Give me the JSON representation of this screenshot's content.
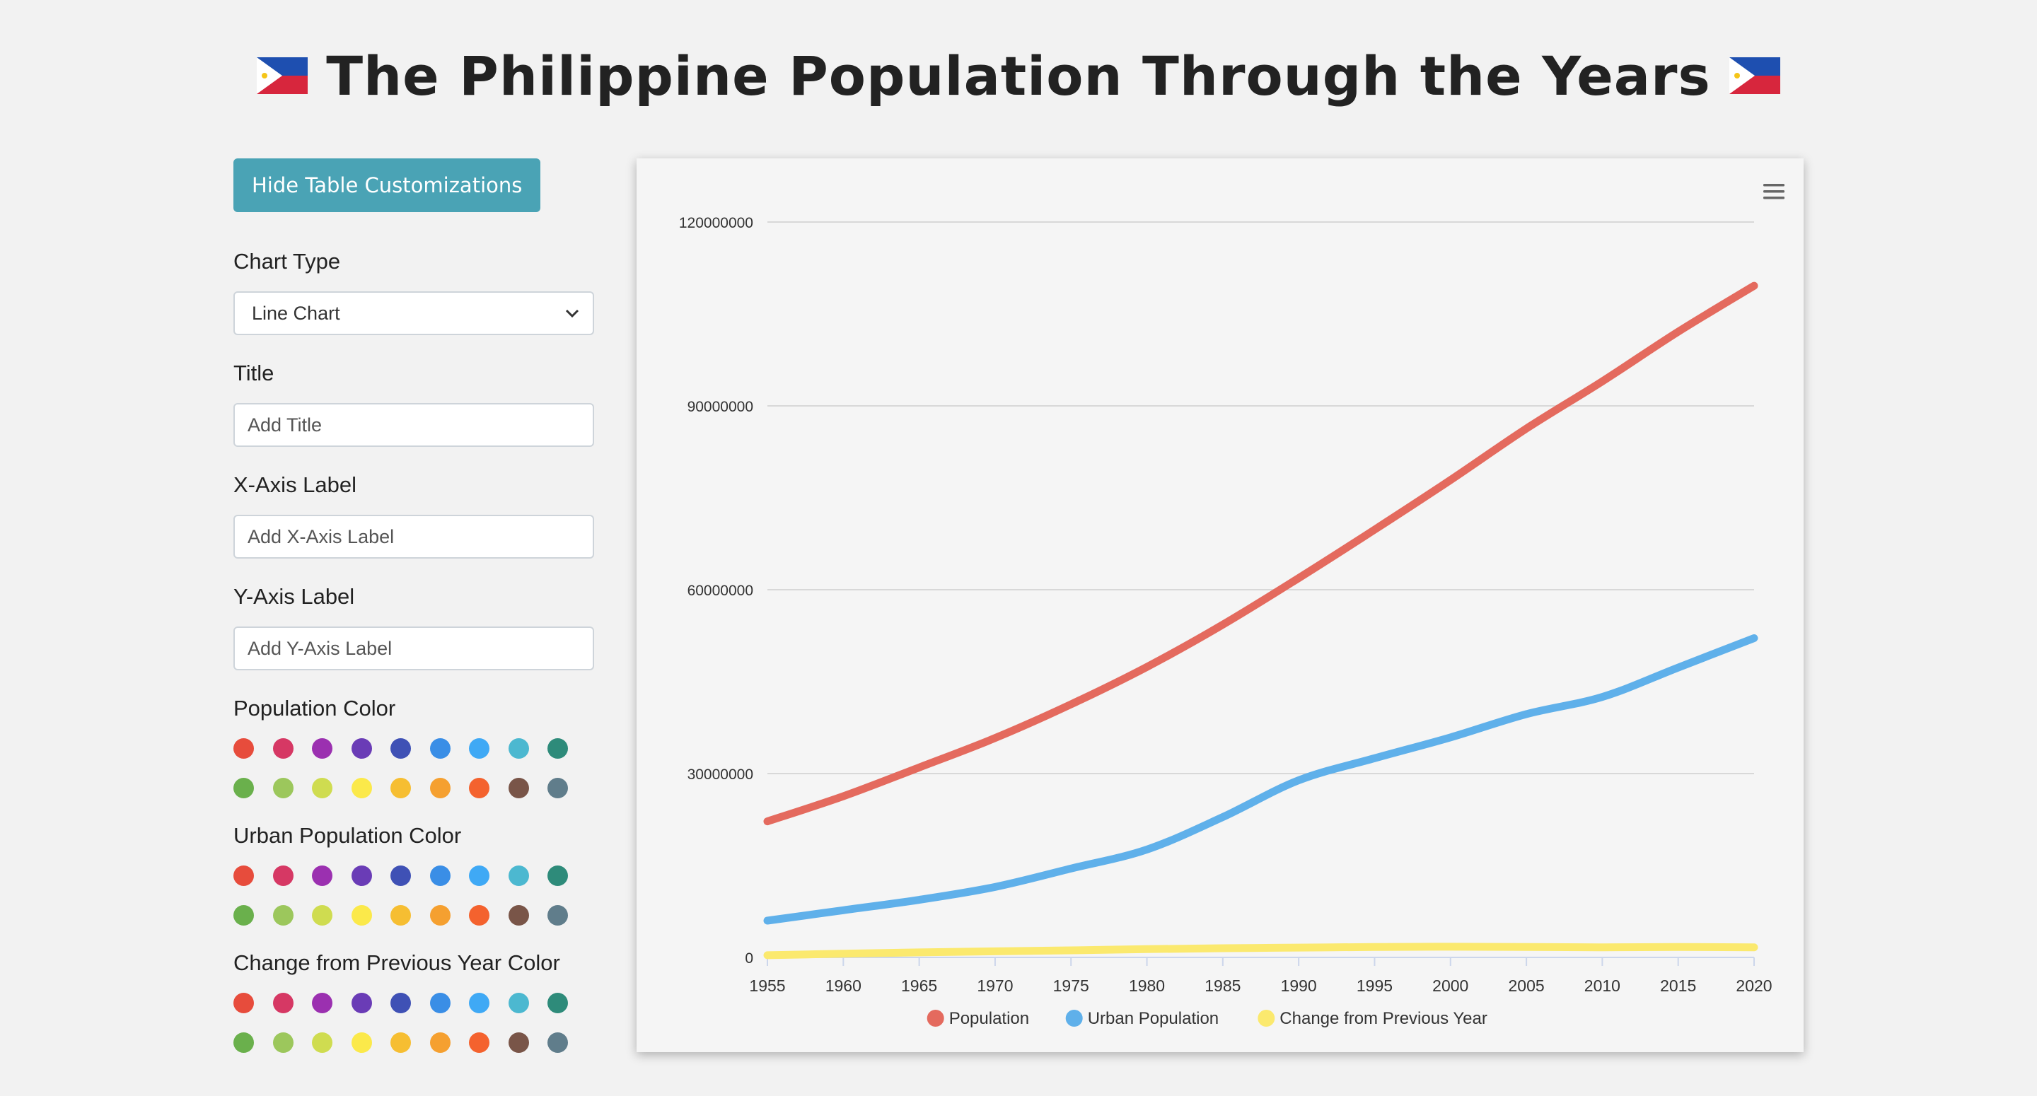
{
  "header": {
    "title": "The Philippine Population Through the Years",
    "flag_left_icon": "philippines-flag-icon",
    "flag_right_icon": "philippines-flag-icon"
  },
  "sidebar": {
    "toggle_button": "Hide Table Customizations",
    "chart_type_label": "Chart Type",
    "chart_type_value": "Line Chart",
    "title_label": "Title",
    "title_placeholder": "Add Title",
    "xaxis_label": "X-Axis Label",
    "xaxis_placeholder": "Add X-Axis Label",
    "yaxis_label": "Y-Axis Label",
    "yaxis_placeholder": "Add Y-Axis Label",
    "color_groups": [
      {
        "label": "Population Color"
      },
      {
        "label": "Urban Population Color"
      },
      {
        "label": "Change from Previous Year Color"
      }
    ],
    "palette": [
      "#e74c3c",
      "#d63864",
      "#9b30b0",
      "#6a3cb6",
      "#3f51b5",
      "#3a8ee6",
      "#3fa9f5",
      "#4cb8d0",
      "#2e8b7a",
      "#6ab04c",
      "#9cc75c",
      "#cfdc50",
      "#fbe94a",
      "#f6be32",
      "#f5a030",
      "#f4622e",
      "#795548",
      "#607d8b"
    ]
  },
  "menu_icon": "hamburger-menu-icon",
  "chart_data": {
    "type": "line",
    "title": "",
    "xlabel": "",
    "ylabel": "",
    "x": [
      1955,
      1960,
      1965,
      1970,
      1975,
      1980,
      1985,
      1990,
      1995,
      2000,
      2005,
      2010,
      2015,
      2020
    ],
    "xticks": [
      "1955",
      "1960",
      "1965",
      "1970",
      "1975",
      "1980",
      "1985",
      "1990",
      "1995",
      "2000",
      "2005",
      "2010",
      "2015",
      "2020"
    ],
    "ylim": [
      0,
      120000000
    ],
    "yticks": [
      0,
      30000000,
      60000000,
      90000000,
      120000000
    ],
    "ytick_labels": [
      "0",
      "30000000",
      "60000000",
      "90000000",
      "120000000"
    ],
    "grid": true,
    "legend": "bottom-center",
    "series": [
      {
        "name": "Population",
        "color": "#e46a5e",
        "values": [
          22200000,
          26300000,
          31000000,
          35800000,
          41300000,
          47400000,
          54300000,
          61900000,
          69800000,
          77900000,
          86300000,
          94000000,
          102100000,
          109600000
        ]
      },
      {
        "name": "Urban Population",
        "color": "#5fb0ea",
        "values": [
          6000000,
          7700000,
          9400000,
          11500000,
          14500000,
          17600000,
          22900000,
          28900000,
          32500000,
          35900000,
          39700000,
          42500000,
          47300000,
          52100000
        ]
      },
      {
        "name": "Change from Previous Year",
        "color": "#fbe96e",
        "values": [
          360000,
          600000,
          820000,
          1000000,
          1150000,
          1350000,
          1500000,
          1600000,
          1700000,
          1750000,
          1700000,
          1650000,
          1700000,
          1650000
        ]
      }
    ]
  }
}
